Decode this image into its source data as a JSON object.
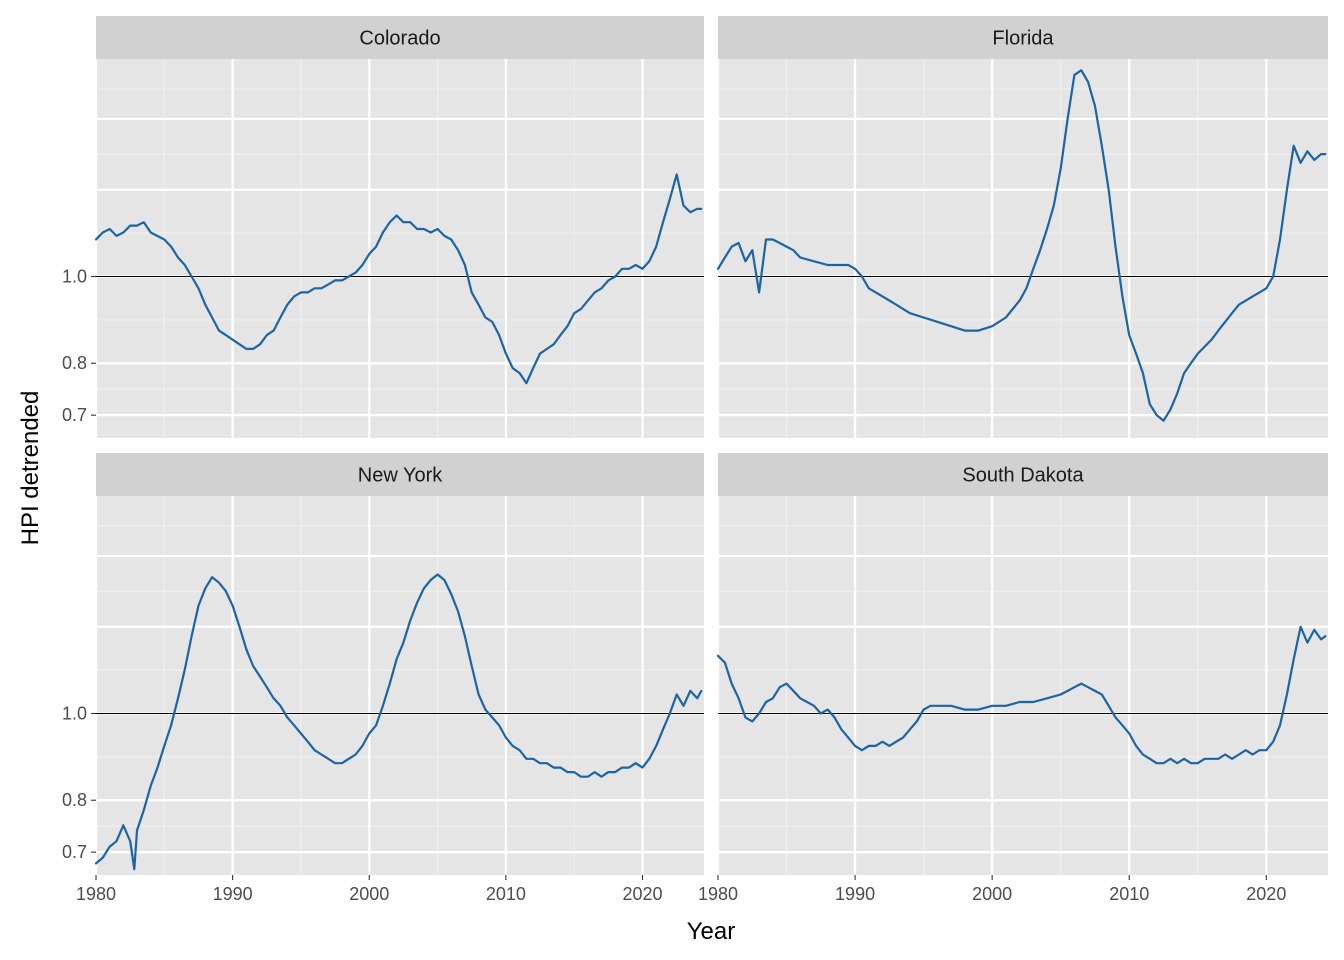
{
  "colors": {
    "panel_bg": "#E5E5E5",
    "strip_bg": "#D1D1D1",
    "grid_major": "#FFFFFF",
    "grid_minor": "#F0F0F0",
    "series_line": "#1A64A8",
    "ref_line": "#000000"
  },
  "chart_data": {
    "type": "line",
    "facet_type": "wrap",
    "xlabel": "Year",
    "ylabel": "HPI detrended",
    "y_scale": "log",
    "xlim": [
      1980,
      2024.5
    ],
    "ylim": [
      0.66,
      1.75
    ],
    "x_ticks": [
      1980,
      1990,
      2000,
      2010,
      2020
    ],
    "y_ticks": [
      0.7,
      0.8,
      1.0
    ],
    "y_tick_labels": [
      "0.7",
      "0.8",
      "1.0"
    ],
    "reference_line": 1.0,
    "grid": true,
    "panels": [
      {
        "name": "Colorado",
        "x": [
          1980,
          1980.5,
          1981,
          1981.5,
          1982,
          1982.5,
          1983,
          1983.5,
          1984,
          1985,
          1985.5,
          1986,
          1986.5,
          1987,
          1987.5,
          1988,
          1988.5,
          1989,
          1989.5,
          1990,
          1990.5,
          1991,
          1991.5,
          1992,
          1992.5,
          1993,
          1993.5,
          1994,
          1994.5,
          1995,
          1995.5,
          1996,
          1996.5,
          1997,
          1997.5,
          1998,
          1998.5,
          1999,
          1999.5,
          2000,
          2000.5,
          2001,
          2001.5,
          2002,
          2002.5,
          2003,
          2003.5,
          2004,
          2004.5,
          2005,
          2005.5,
          2006,
          2006.5,
          2007,
          2007.5,
          2008,
          2008.5,
          2009,
          2009.5,
          2010,
          2010.5,
          2011,
          2011.5,
          2012,
          2012.5,
          2013,
          2013.5,
          2014,
          2014.5,
          2015,
          2015.5,
          2016,
          2016.5,
          2017,
          2017.5,
          2018,
          2018.5,
          2019,
          2019.5,
          2020,
          2020.5,
          2021,
          2021.5,
          2022,
          2022.5,
          2023,
          2023.5,
          2024,
          2024.3
        ],
        "y": [
          1.1,
          1.12,
          1.13,
          1.11,
          1.12,
          1.14,
          1.14,
          1.15,
          1.12,
          1.1,
          1.08,
          1.05,
          1.03,
          1.0,
          0.97,
          0.93,
          0.9,
          0.87,
          0.86,
          0.85,
          0.84,
          0.83,
          0.83,
          0.84,
          0.86,
          0.87,
          0.9,
          0.93,
          0.95,
          0.96,
          0.96,
          0.97,
          0.97,
          0.98,
          0.99,
          0.99,
          1.0,
          1.01,
          1.03,
          1.06,
          1.08,
          1.12,
          1.15,
          1.17,
          1.15,
          1.15,
          1.13,
          1.13,
          1.12,
          1.13,
          1.11,
          1.1,
          1.07,
          1.03,
          0.96,
          0.93,
          0.9,
          0.89,
          0.86,
          0.82,
          0.79,
          0.78,
          0.76,
          0.79,
          0.82,
          0.83,
          0.84,
          0.86,
          0.88,
          0.91,
          0.92,
          0.94,
          0.96,
          0.97,
          0.99,
          1.0,
          1.02,
          1.02,
          1.03,
          1.02,
          1.04,
          1.08,
          1.15,
          1.22,
          1.3,
          1.2,
          1.18,
          1.19,
          1.19
        ]
      },
      {
        "name": "Florida",
        "x": [
          1980,
          1980.5,
          1981,
          1981.5,
          1982,
          1982.5,
          1983,
          1983.5,
          1984,
          1984.5,
          1985,
          1985.5,
          1986,
          1987,
          1988,
          1989,
          1989.5,
          1990,
          1990.5,
          1991,
          1992,
          1993,
          1994,
          1995,
          1996,
          1997,
          1998,
          1999,
          2000,
          2001,
          2002,
          2002.5,
          2003,
          2003.5,
          2004,
          2004.5,
          2005,
          2005.5,
          2006,
          2006.5,
          2007,
          2007.5,
          2008,
          2008.5,
          2009,
          2009.5,
          2010,
          2010.5,
          2011,
          2011.5,
          2012,
          2012.5,
          2013,
          2013.5,
          2014,
          2014.5,
          2015,
          2016,
          2016.5,
          2017,
          2017.5,
          2018,
          2018.5,
          2019,
          2019.5,
          2020,
          2020.5,
          2021,
          2021.5,
          2022,
          2022.5,
          2023,
          2023.5,
          2024,
          2024.3
        ],
        "y": [
          1.02,
          1.05,
          1.08,
          1.09,
          1.04,
          1.07,
          0.96,
          1.1,
          1.1,
          1.09,
          1.08,
          1.07,
          1.05,
          1.04,
          1.03,
          1.03,
          1.03,
          1.02,
          1.0,
          0.97,
          0.95,
          0.93,
          0.91,
          0.9,
          0.89,
          0.88,
          0.87,
          0.87,
          0.88,
          0.9,
          0.94,
          0.97,
          1.02,
          1.07,
          1.13,
          1.2,
          1.32,
          1.5,
          1.68,
          1.7,
          1.65,
          1.55,
          1.4,
          1.25,
          1.08,
          0.95,
          0.86,
          0.82,
          0.78,
          0.72,
          0.7,
          0.69,
          0.71,
          0.74,
          0.78,
          0.8,
          0.82,
          0.85,
          0.87,
          0.89,
          0.91,
          0.93,
          0.94,
          0.95,
          0.96,
          0.97,
          1.0,
          1.1,
          1.25,
          1.4,
          1.34,
          1.38,
          1.35,
          1.37,
          1.37
        ]
      },
      {
        "name": "New York",
        "x": [
          1980,
          1980.5,
          1981,
          1981.5,
          1982,
          1982.5,
          1982.8,
          1983,
          1983.5,
          1984,
          1984.5,
          1985,
          1985.5,
          1986,
          1986.5,
          1987,
          1987.5,
          1988,
          1988.5,
          1989,
          1989.5,
          1990,
          1990.5,
          1991,
          1991.5,
          1992,
          1992.5,
          1993,
          1993.5,
          1994,
          1994.5,
          1995,
          1995.5,
          1996,
          1996.5,
          1997,
          1997.5,
          1998,
          1998.5,
          1999,
          1999.5,
          2000,
          2000.5,
          2001,
          2001.5,
          2002,
          2002.5,
          2003,
          2003.5,
          2004,
          2004.5,
          2005,
          2005.5,
          2006,
          2006.5,
          2007,
          2007.5,
          2008,
          2008.5,
          2009,
          2009.5,
          2010,
          2010.5,
          2011,
          2011.5,
          2012,
          2012.5,
          2013,
          2013.5,
          2014,
          2014.5,
          2015,
          2015.5,
          2016,
          2016.5,
          2017,
          2017.5,
          2018,
          2018.5,
          2019,
          2019.5,
          2020,
          2020.5,
          2021,
          2021.5,
          2022,
          2022.5,
          2023,
          2023.5,
          2024,
          2024.3
        ],
        "y": [
          0.68,
          0.69,
          0.71,
          0.72,
          0.75,
          0.72,
          0.67,
          0.74,
          0.78,
          0.83,
          0.87,
          0.92,
          0.97,
          1.04,
          1.12,
          1.22,
          1.32,
          1.38,
          1.42,
          1.4,
          1.37,
          1.32,
          1.25,
          1.18,
          1.13,
          1.1,
          1.07,
          1.04,
          1.02,
          0.99,
          0.97,
          0.95,
          0.93,
          0.91,
          0.9,
          0.89,
          0.88,
          0.88,
          0.89,
          0.9,
          0.92,
          0.95,
          0.97,
          1.02,
          1.08,
          1.15,
          1.2,
          1.27,
          1.33,
          1.38,
          1.41,
          1.43,
          1.41,
          1.36,
          1.3,
          1.22,
          1.13,
          1.05,
          1.01,
          0.99,
          0.97,
          0.94,
          0.92,
          0.91,
          0.89,
          0.89,
          0.88,
          0.88,
          0.87,
          0.87,
          0.86,
          0.86,
          0.85,
          0.85,
          0.86,
          0.85,
          0.86,
          0.86,
          0.87,
          0.87,
          0.88,
          0.87,
          0.89,
          0.92,
          0.96,
          1.0,
          1.05,
          1.02,
          1.06,
          1.04,
          1.06
        ]
      },
      {
        "name": "South Dakota",
        "x": [
          1980,
          1980.5,
          1981,
          1981.5,
          1982,
          1982.5,
          1983,
          1983.5,
          1984,
          1984.5,
          1985,
          1985.5,
          1986,
          1986.5,
          1987,
          1987.5,
          1988,
          1988.5,
          1989,
          1989.5,
          1990,
          1990.5,
          1991,
          1991.5,
          1992,
          1992.5,
          1993,
          1993.5,
          1994,
          1994.5,
          1995,
          1995.5,
          1996,
          1997,
          1998,
          1999,
          2000,
          2001,
          2002,
          2003,
          2004,
          2005,
          2005.5,
          2006,
          2006.5,
          2007,
          2007.5,
          2008,
          2008.5,
          2009,
          2009.5,
          2010,
          2010.5,
          2011,
          2011.5,
          2012,
          2012.5,
          2013,
          2013.5,
          2014,
          2014.5,
          2015,
          2015.5,
          2016,
          2016.5,
          2017,
          2017.5,
          2018,
          2018.5,
          2019,
          2019.5,
          2020,
          2020.5,
          2021,
          2021.5,
          2022,
          2022.5,
          2023,
          2023.5,
          2024,
          2024.3
        ],
        "y": [
          1.16,
          1.14,
          1.08,
          1.04,
          0.99,
          0.98,
          1.0,
          1.03,
          1.04,
          1.07,
          1.08,
          1.06,
          1.04,
          1.03,
          1.02,
          1.0,
          1.01,
          0.99,
          0.96,
          0.94,
          0.92,
          0.91,
          0.92,
          0.92,
          0.93,
          0.92,
          0.93,
          0.94,
          0.96,
          0.98,
          1.01,
          1.02,
          1.02,
          1.02,
          1.01,
          1.01,
          1.02,
          1.02,
          1.03,
          1.03,
          1.04,
          1.05,
          1.06,
          1.07,
          1.08,
          1.07,
          1.06,
          1.05,
          1.02,
          0.99,
          0.97,
          0.95,
          0.92,
          0.9,
          0.89,
          0.88,
          0.88,
          0.89,
          0.88,
          0.89,
          0.88,
          0.88,
          0.89,
          0.89,
          0.89,
          0.9,
          0.89,
          0.9,
          0.91,
          0.9,
          0.91,
          0.91,
          0.93,
          0.97,
          1.05,
          1.15,
          1.25,
          1.2,
          1.24,
          1.21,
          1.22
        ]
      }
    ]
  }
}
